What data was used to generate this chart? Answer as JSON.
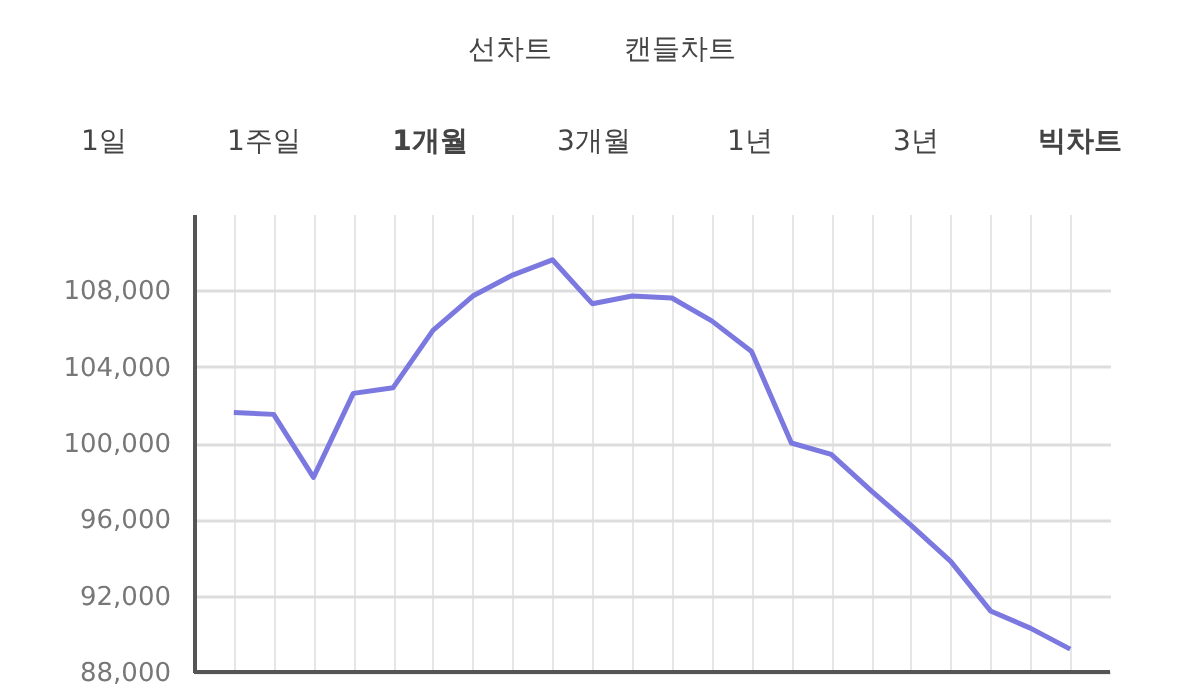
{
  "chart_data": {
    "type": "line",
    "categories": [
      null,
      null,
      null,
      null,
      null,
      null,
      null,
      null,
      null,
      null,
      null,
      null,
      null,
      null,
      null,
      null,
      null,
      null,
      null,
      null,
      null,
      null
    ],
    "series": [
      {
        "color": "#7b78e0",
        "values": [
          101600,
          101500,
          98200,
          102600,
          102900,
          105900,
          107700,
          108800,
          109600,
          107300,
          107700,
          107600,
          106400,
          104800,
          100000,
          99400,
          97500,
          95700,
          93800,
          91200,
          90300,
          89200
        ]
      }
    ],
    "ylim": [
      88000,
      112000
    ],
    "yticks": [
      {
        "value": 88000,
        "label": "88,000"
      },
      {
        "value": 92000,
        "label": "92,000"
      },
      {
        "value": 96000,
        "label": "96,000"
      },
      {
        "value": 100000,
        "label": "100,000"
      },
      {
        "value": 104000,
        "label": "104,000"
      },
      {
        "value": 108000,
        "label": "108,000"
      }
    ],
    "grid": true,
    "legend": false,
    "marker": "none",
    "line_style": "solid",
    "tick_labels": "y",
    "annotations": [
      "선차트",
      "캔들차트",
      "1일",
      "1주일",
      "1개월",
      "3개월",
      "1년",
      "3년",
      "빅차트"
    ]
  }
}
